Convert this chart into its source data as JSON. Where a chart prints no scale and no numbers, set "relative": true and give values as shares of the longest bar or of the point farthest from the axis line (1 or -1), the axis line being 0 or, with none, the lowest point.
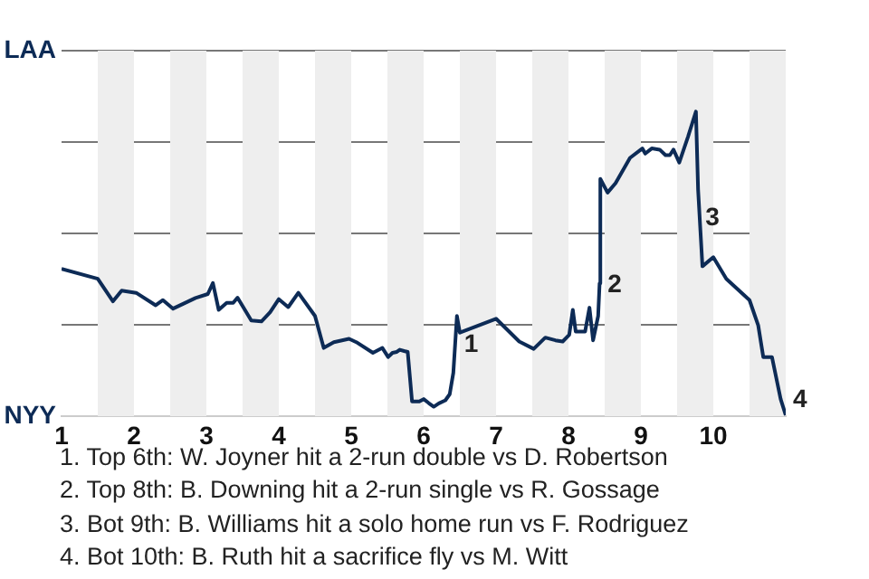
{
  "chart_data": {
    "type": "line",
    "relative": true,
    "x": [
      1,
      1.5,
      1.71,
      1.83,
      2.03,
      2.3,
      2.4,
      2.54,
      2.85,
      3.02,
      3.09,
      3.17,
      3.28,
      3.37,
      3.43,
      3.62,
      3.76,
      3.88,
      4,
      4.13,
      4.27,
      4.5,
      4.62,
      4.76,
      4.97,
      5.07,
      5.3,
      5.43,
      5.51,
      5.57,
      5.63,
      5.67,
      5.73,
      5.78,
      5.84,
      5.94,
      6,
      6.07,
      6.14,
      6.21,
      6.3,
      6.36,
      6.41,
      6.46,
      6.5,
      6.73,
      7,
      7.32,
      7.52,
      7.68,
      7.82,
      7.92,
      8.01,
      8.06,
      8.1,
      8.23,
      8.29,
      8.34,
      8.41,
      8.43,
      8.44,
      8.54,
      8.65,
      8.85,
      9.02,
      9.06,
      9.15,
      9.26,
      9.34,
      9.4,
      9.45,
      9.53,
      9.65,
      9.76,
      9.79,
      9.85,
      10,
      10.18,
      10.5,
      10.62,
      10.69,
      10.81,
      10.93,
      11
    ],
    "series": [
      {
        "color": "#0d2b56",
        "values": [
          0.484,
          0.451,
          0.377,
          0.412,
          0.405,
          0.364,
          0.381,
          0.353,
          0.388,
          0.401,
          0.437,
          0.349,
          0.372,
          0.372,
          0.389,
          0.314,
          0.311,
          0.341,
          0.384,
          0.358,
          0.405,
          0.329,
          0.224,
          0.243,
          0.254,
          0.243,
          0.208,
          0.224,
          0.194,
          0.208,
          0.211,
          0.218,
          0.214,
          0.211,
          0.048,
          0.048,
          0.056,
          0.043,
          0.031,
          0.042,
          0.052,
          0.072,
          0.142,
          0.329,
          0.274,
          0.295,
          0.32,
          0.245,
          0.221,
          0.258,
          0.249,
          0.245,
          0.267,
          0.349,
          0.278,
          0.278,
          0.356,
          0.249,
          0.329,
          0.436,
          0.779,
          0.734,
          0.765,
          0.848,
          0.879,
          0.862,
          0.879,
          0.875,
          0.857,
          0.857,
          0.875,
          0.833,
          0.917,
          1,
          0.744,
          0.492,
          0.522,
          0.451,
          0.381,
          0.298,
          0.194,
          0.194,
          0.056,
          0.003
        ]
      }
    ],
    "xlim": [
      1,
      11
    ],
    "xticks": [
      1,
      2,
      3,
      4,
      5,
      6,
      7,
      8,
      9,
      10
    ],
    "grid": "y",
    "marker": "none",
    "line_style": "solid",
    "bands": [
      {
        "axis": "x",
        "from": 1.5,
        "to": 2,
        "color": "#eeeeee"
      },
      {
        "axis": "x",
        "from": 2.5,
        "to": 3,
        "color": "#eeeeee"
      },
      {
        "axis": "x",
        "from": 3.5,
        "to": 4,
        "color": "#eeeeee"
      },
      {
        "axis": "x",
        "from": 4.5,
        "to": 5,
        "color": "#eeeeee"
      },
      {
        "axis": "x",
        "from": 5.5,
        "to": 6,
        "color": "#eeeeee"
      },
      {
        "axis": "x",
        "from": 6.5,
        "to": 7,
        "color": "#eeeeee"
      },
      {
        "axis": "x",
        "from": 7.5,
        "to": 8,
        "color": "#eeeeee"
      },
      {
        "axis": "x",
        "from": 8.5,
        "to": 9,
        "color": "#eeeeee"
      },
      {
        "axis": "x",
        "from": 9.5,
        "to": 10,
        "color": "#eeeeee"
      },
      {
        "axis": "x",
        "from": 10.5,
        "to": 11,
        "color": "#eeeeee"
      }
    ],
    "annotations": [
      "LAA",
      "NYY",
      {
        "text": "1",
        "x": 6.46,
        "y": 0.329
      },
      {
        "text": "2",
        "x": 8.44,
        "y": 0.524
      },
      {
        "text": "3",
        "x": 9.79,
        "y": 0.744
      },
      {
        "text": "4",
        "x": 11,
        "y": 0.003
      },
      "1. Top 6th: W. Joyner hit a 2-run double vs D. Robertson",
      "2. Top 8th: B. Downing hit a 2-run single vs R. Gossage",
      "3. Bot 9th: B. Williams hit a solo home run vs F. Rodriguez",
      "4. Bot 10th: B. Ruth hit a sacrifice fly vs M. Witt"
    ]
  }
}
